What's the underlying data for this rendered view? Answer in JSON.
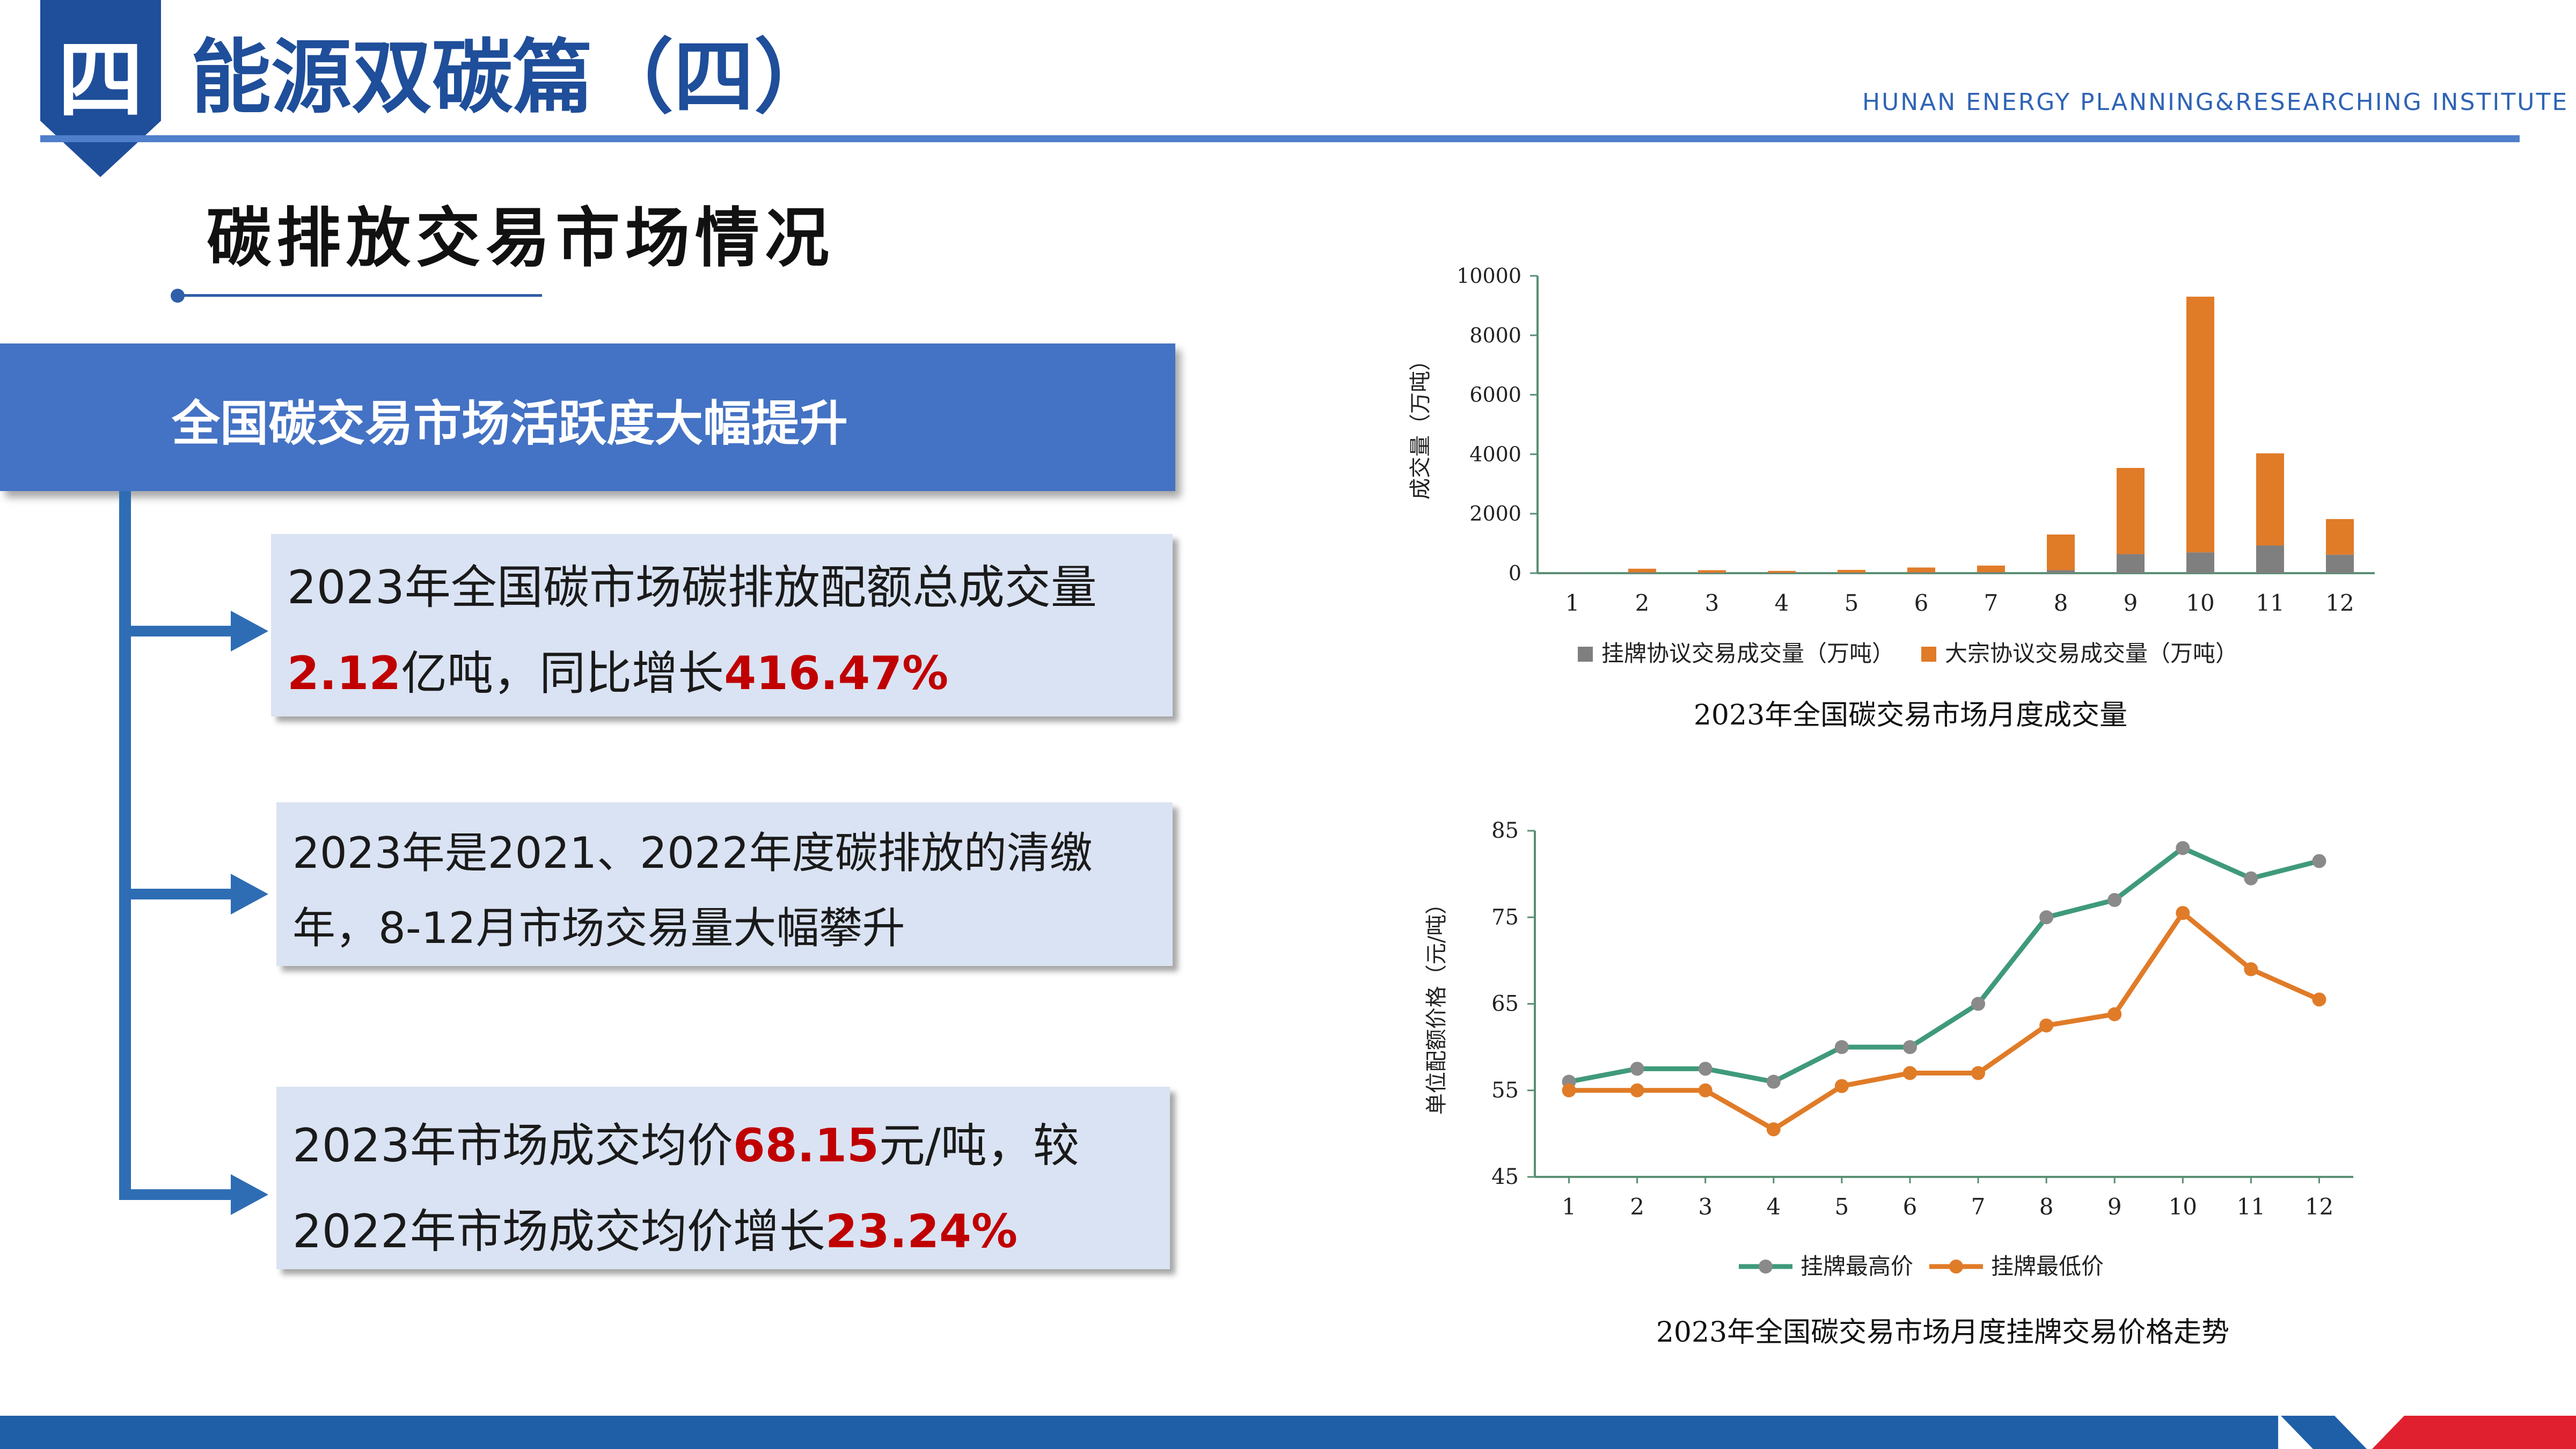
{
  "header": {
    "badge": "四",
    "title": "能源双碳篇（四）",
    "institute": "HUNAN ENERGY PLANNING&RESEARCHING INSTITUTE"
  },
  "subtitle": "碳排放交易市场情况",
  "banner": "全国碳交易市场活跃度大幅提升",
  "boxes": [
    {
      "line1": "2023年全国碳市场碳排放配额总成交量",
      "v1": "2.12",
      "t1": "亿吨，同比增长",
      "v2": "416.47%"
    },
    {
      "line1": "2023年是2021、2022年度碳排放的清缴",
      "line2": "年，8-12月市场交易量大幅攀升"
    },
    {
      "t0": "2023年市场成交均价",
      "v1": "68.15",
      "t1": "元/吨，较",
      "t2": "2022年市场成交均价增长",
      "v2": "23.24%"
    }
  ],
  "colors": {
    "primary": "#4472c4",
    "dark_blue": "#1f4e9a",
    "red": "#c00000",
    "orange": "#e07b28",
    "gray": "#7f7f7f",
    "green": "#3f9a7a"
  },
  "chart_data": [
    {
      "type": "bar",
      "stacked": true,
      "title": "2023年全国碳交易市场月度成交量",
      "ylabel": "成交量（万吨）",
      "xlabel": "",
      "ylim": [
        0,
        10000
      ],
      "yticks": [
        0,
        2000,
        4000,
        6000,
        8000,
        10000
      ],
      "categories": [
        "1",
        "2",
        "3",
        "4",
        "5",
        "6",
        "7",
        "8",
        "9",
        "10",
        "11",
        "12"
      ],
      "series": [
        {
          "name": "挂牌协议交易成交量（万吨）",
          "color": "#7f7f7f",
          "values": [
            15,
            30,
            20,
            15,
            20,
            30,
            35,
            100,
            640,
            700,
            930,
            620
          ]
        },
        {
          "name": "大宗协议交易成交量（万吨）",
          "color": "#e07b28",
          "values": [
            0,
            120,
            80,
            60,
            90,
            160,
            220,
            1200,
            2900,
            8600,
            3100,
            1200
          ]
        }
      ],
      "legend": "bottom"
    },
    {
      "type": "line",
      "title": "2023年全国碳交易市场月度挂牌交易价格走势",
      "ylabel": "单位配额价格（元/吨）",
      "xlabel": "",
      "ylim": [
        45,
        85
      ],
      "yticks": [
        45,
        55,
        65,
        75,
        85
      ],
      "categories": [
        "1",
        "2",
        "3",
        "4",
        "5",
        "6",
        "7",
        "8",
        "9",
        "10",
        "11",
        "12"
      ],
      "series": [
        {
          "name": "挂牌最高价",
          "color": "#3f9a7a",
          "values": [
            56,
            57.5,
            57.5,
            56,
            60,
            60,
            65,
            75,
            77,
            83,
            79.5,
            81.5
          ]
        },
        {
          "name": "挂牌最低价",
          "color": "#e07b28",
          "values": [
            55,
            55,
            55,
            50.5,
            55.5,
            57,
            57,
            62.5,
            63.8,
            75.5,
            69,
            65.5
          ]
        }
      ],
      "legend": "bottom"
    }
  ]
}
